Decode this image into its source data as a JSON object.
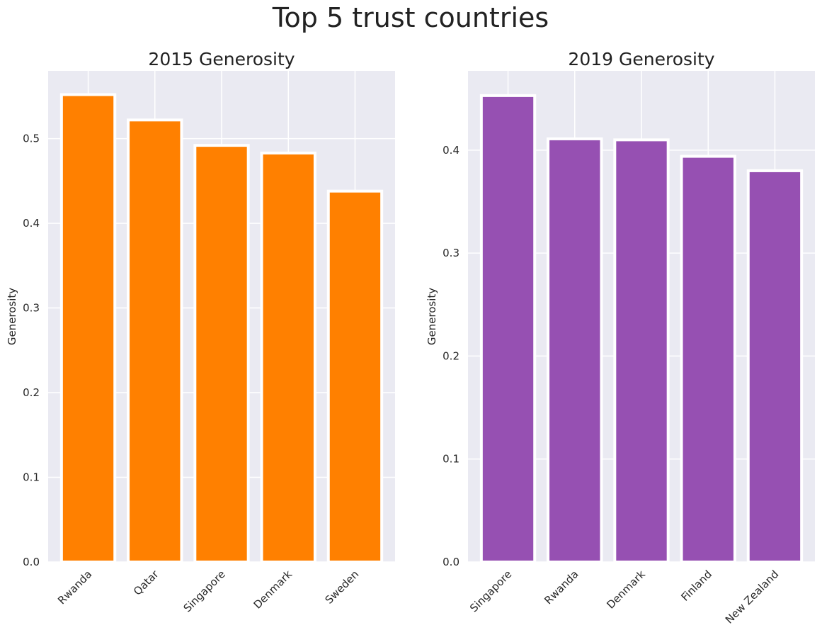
{
  "figure": {
    "title": "Top 5 trust countries"
  },
  "colors": {
    "panel_background": "#EAEAF2",
    "grid": "#FFFFFF",
    "bar_edge": "#FFFFFF"
  },
  "chart_data": [
    {
      "type": "bar",
      "title": "2015 Generosity",
      "xlabel": "",
      "ylabel": "Generosity",
      "categories": [
        "Rwanda",
        "Qatar",
        "Singapore",
        "Denmark",
        "Sweden"
      ],
      "values": [
        0.552,
        0.522,
        0.492,
        0.483,
        0.438
      ],
      "color": "#FF8000",
      "ylim": [
        0,
        0.58
      ],
      "yticks": [
        "0.0",
        "0.1",
        "0.2",
        "0.3",
        "0.4",
        "0.5"
      ],
      "grid": true,
      "xtick_rotation": "45deg"
    },
    {
      "type": "bar",
      "title": "2019 Generosity",
      "xlabel": "",
      "ylabel": "Generosity",
      "categories": [
        "Singapore",
        "Rwanda",
        "Denmark",
        "Finland",
        "New Zealand"
      ],
      "values": [
        0.453,
        0.411,
        0.41,
        0.394,
        0.38
      ],
      "color": "#9650B2",
      "ylim": [
        0,
        0.477
      ],
      "yticks": [
        "0.0",
        "0.1",
        "0.2",
        "0.3",
        "0.4"
      ],
      "grid": true,
      "xtick_rotation": "45deg"
    }
  ]
}
